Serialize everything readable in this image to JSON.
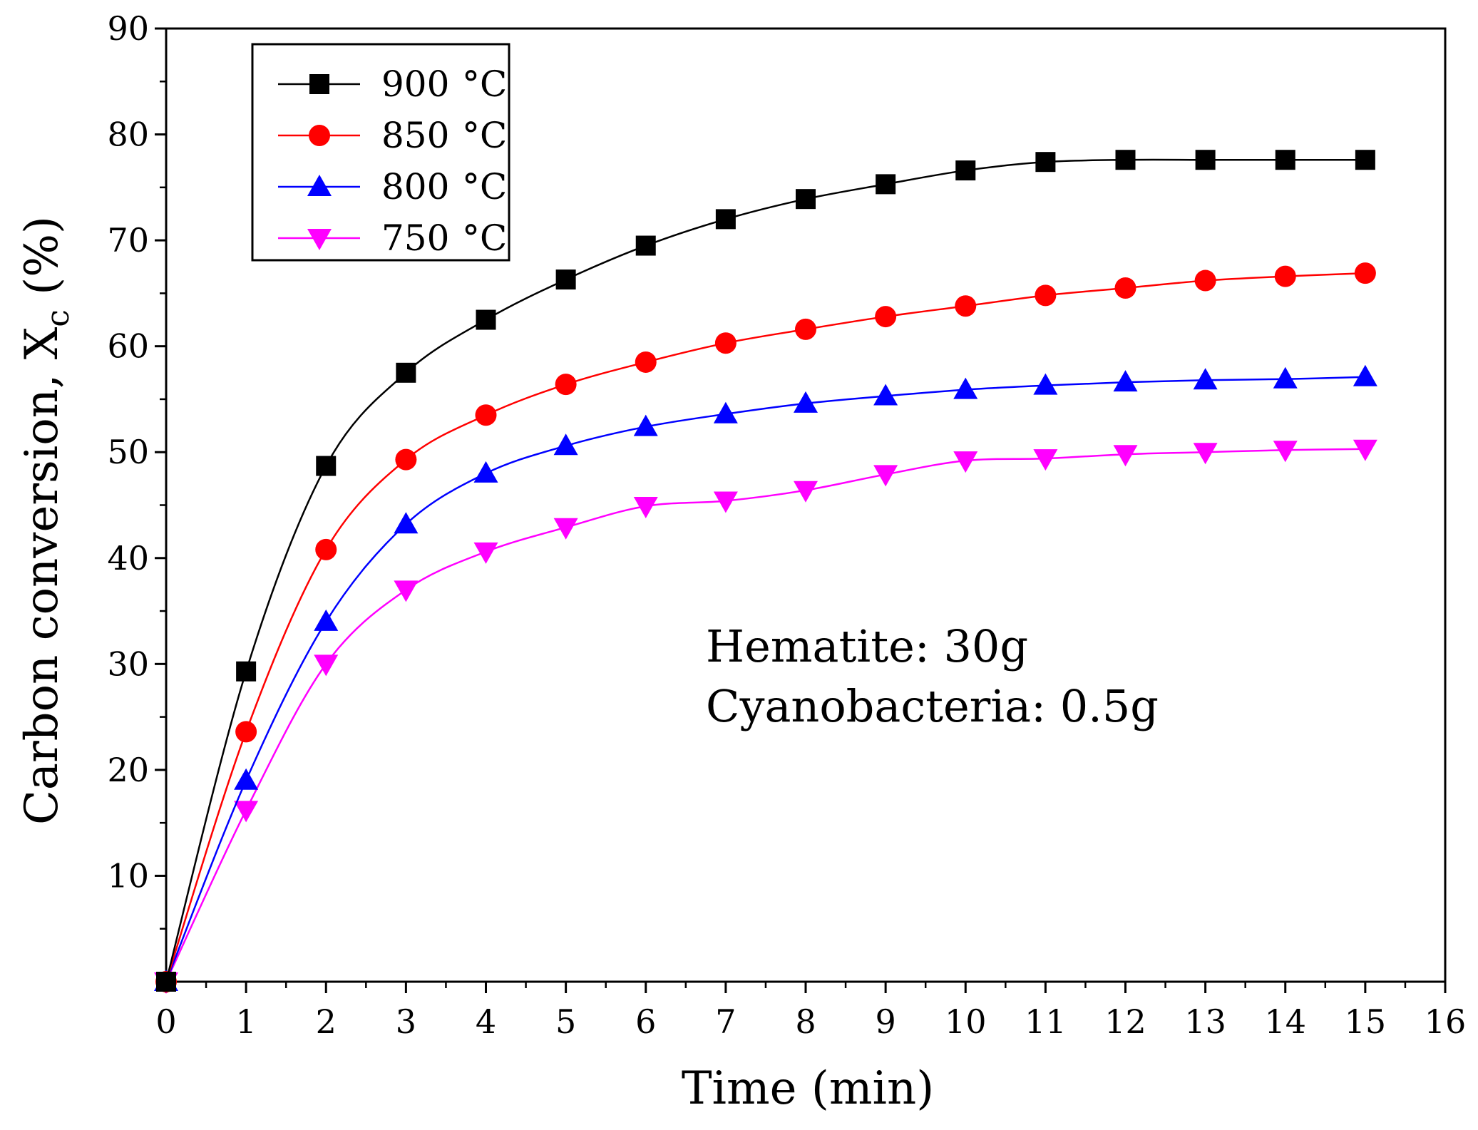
{
  "chart_data": {
    "type": "line",
    "title": "",
    "xlabel": "Time (min)",
    "ylabel_main": "Carbon conversion, X",
    "ylabel_sub": "c",
    "ylabel_unit": " (%)",
    "xlim": [
      0,
      16
    ],
    "ylim": [
      0,
      90
    ],
    "x_ticks": [
      "0",
      "1",
      "2",
      "3",
      "4",
      "5",
      "6",
      "7",
      "8",
      "9",
      "10",
      "11",
      "12",
      "13",
      "14",
      "15",
      "16"
    ],
    "y_ticks": [
      "10",
      "20",
      "30",
      "40",
      "50",
      "60",
      "70",
      "80",
      "90"
    ],
    "grid": false,
    "legend_position": "top-left",
    "x": [
      0,
      1,
      2,
      3,
      4,
      5,
      6,
      7,
      8,
      9,
      10,
      11,
      12,
      13,
      14,
      15
    ],
    "series": [
      {
        "name": "900 °C",
        "temp": "900",
        "unit": "°C",
        "color": "#000000",
        "marker": "square",
        "values": [
          0,
          29.3,
          48.7,
          57.5,
          62.5,
          66.3,
          69.5,
          72.0,
          73.9,
          75.3,
          76.6,
          77.4,
          77.6,
          77.6,
          77.6,
          77.6
        ]
      },
      {
        "name": "850 °C",
        "temp": "850",
        "unit": "°C",
        "color": "#ff0000",
        "marker": "circle",
        "values": [
          0,
          23.6,
          40.8,
          49.3,
          53.5,
          56.4,
          58.5,
          60.3,
          61.6,
          62.8,
          63.8,
          64.8,
          65.5,
          66.2,
          66.6,
          66.9
        ]
      },
      {
        "name": "800 °C",
        "temp": "800",
        "unit": "°C",
        "color": "#0000ff",
        "marker": "triangle-up",
        "values": [
          0,
          19.0,
          34.0,
          43.2,
          48.0,
          50.6,
          52.4,
          53.6,
          54.6,
          55.3,
          55.9,
          56.3,
          56.6,
          56.8,
          56.9,
          57.1
        ]
      },
      {
        "name": "750 °C",
        "temp": "750",
        "unit": "°C",
        "color": "#ff00ff",
        "marker": "triangle-down",
        "values": [
          0,
          16.2,
          30.0,
          37.0,
          40.6,
          42.9,
          44.9,
          45.4,
          46.4,
          47.9,
          49.2,
          49.4,
          49.8,
          50.0,
          50.2,
          50.3
        ]
      }
    ],
    "annotations": [
      "Hematite: 30g",
      "Cyanobacteria: 0.5g"
    ]
  }
}
